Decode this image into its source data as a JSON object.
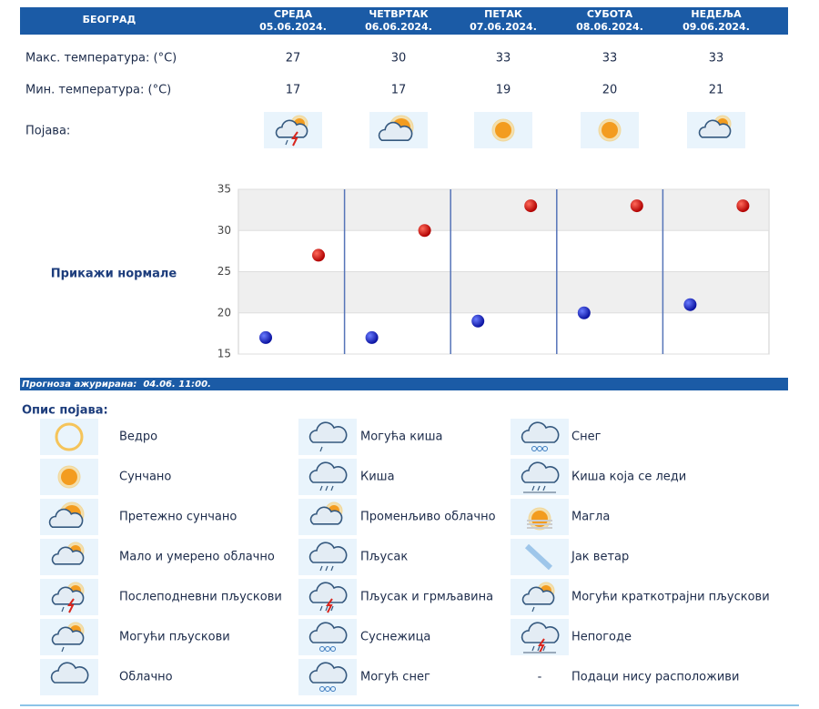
{
  "header": {
    "city": "БЕОГРАД",
    "days": [
      {
        "name": "СРЕДА",
        "date": "05.06.2024."
      },
      {
        "name": "ЧЕТВРТАК",
        "date": "06.06.2024."
      },
      {
        "name": "ПЕТАК",
        "date": "07.06.2024."
      },
      {
        "name": "СУБОТА",
        "date": "08.06.2024."
      },
      {
        "name": "НЕДЕЉА",
        "date": "09.06.2024."
      }
    ]
  },
  "forecast": {
    "max_label": "Макс. температура: (°C)",
    "max": [
      27,
      30,
      33,
      33,
      33
    ],
    "min_label": "Мин. температура: (°C)",
    "min": [
      17,
      17,
      19,
      20,
      21
    ],
    "phenomenon_label": "Појава:"
  },
  "chart": {
    "ylim": [
      15,
      35
    ],
    "yticks": [
      15,
      20,
      25,
      30,
      35
    ],
    "normals_link": "Прикажи нормале"
  },
  "updated": "Прогноза ажурирана:  04.06. 11:00.",
  "legend": {
    "title": "Опис појава:",
    "items": [
      {
        "label": "Ведро"
      },
      {
        "label": "Сунчано"
      },
      {
        "label": "Претежно сунчано"
      },
      {
        "label": "Мало и умерено облачно"
      },
      {
        "label": "Послеподневни пљускови"
      },
      {
        "label": "Могући пљускови"
      },
      {
        "label": "Облачно"
      },
      {
        "label": "Могућа киша"
      },
      {
        "label": "Киша"
      },
      {
        "label": "Променљиво облачно"
      },
      {
        "label": "Пљусак"
      },
      {
        "label": "Пљусак и грмљавина"
      },
      {
        "label": "Суснежица"
      },
      {
        "label": "Могућ снег"
      },
      {
        "label": "Снег"
      },
      {
        "label": "Киша која се леди"
      },
      {
        "label": "Магла"
      },
      {
        "label": "Јак ветар"
      },
      {
        "label": "Могући краткотрајни пљускови"
      },
      {
        "label": "Непогоде"
      },
      {
        "symbol": "-",
        "label": "Подаци нису расположиви"
      }
    ]
  }
}
